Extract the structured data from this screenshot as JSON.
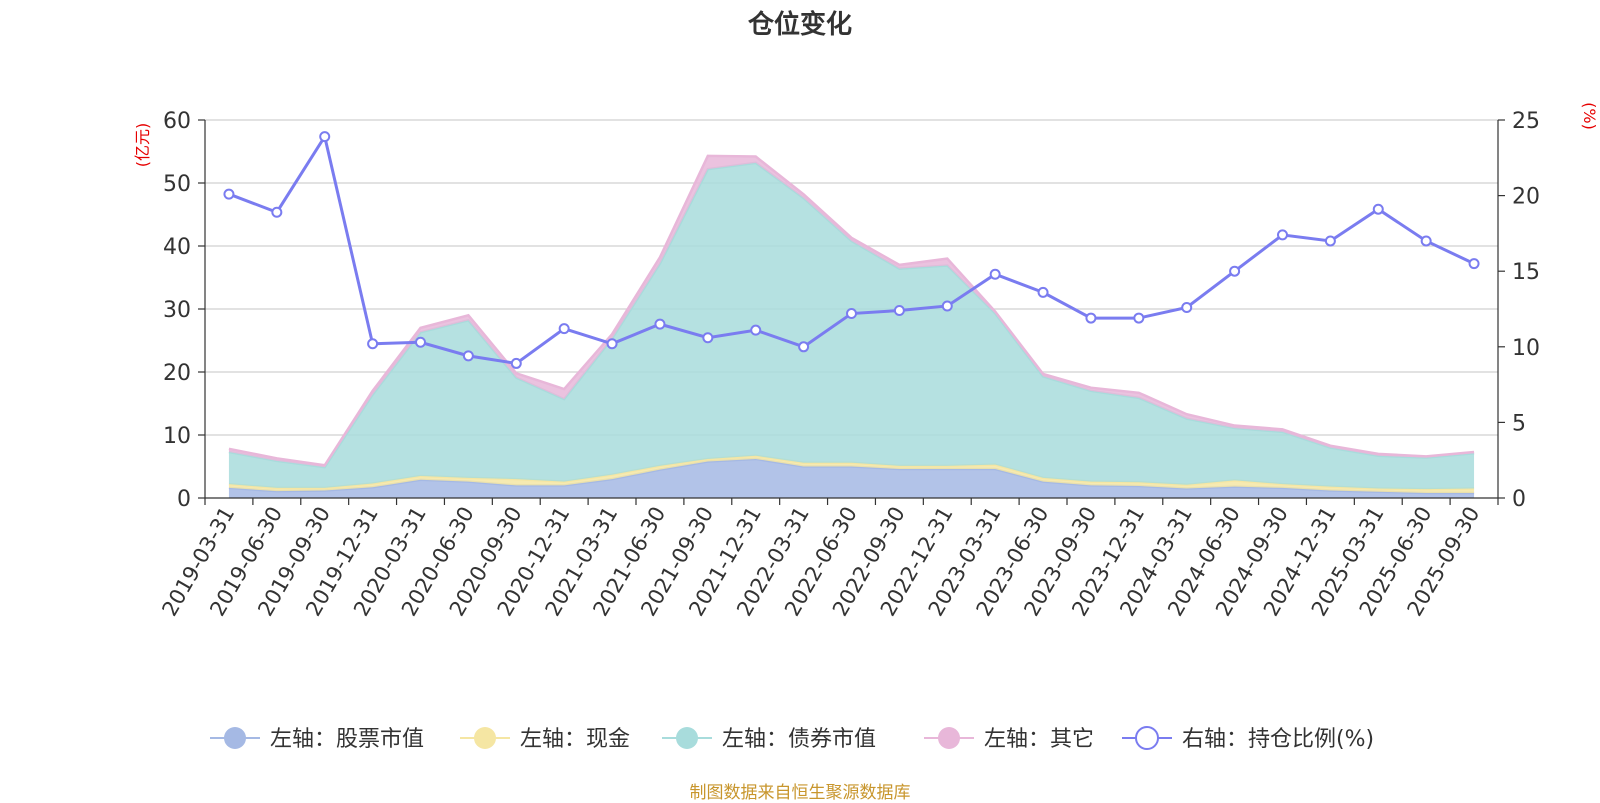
{
  "chart_data": {
    "type": "area",
    "title": "仓位变化",
    "source_note": "制图数据来自恒生聚源数据库",
    "left_axis": {
      "unit_label": "(亿元)",
      "range": [
        0,
        60
      ],
      "ticks": [
        0,
        10,
        20,
        30,
        40,
        50,
        60
      ]
    },
    "right_axis": {
      "unit_label": "(%)",
      "range": [
        0,
        25
      ],
      "ticks": [
        0,
        5,
        10,
        15,
        20,
        25
      ]
    },
    "categories": [
      "2019-03-31",
      "2019-06-30",
      "2019-09-30",
      "2019-12-31",
      "2020-03-31",
      "2020-06-30",
      "2020-09-30",
      "2020-12-31",
      "2021-03-31",
      "2021-06-30",
      "2021-09-30",
      "2021-12-31",
      "2022-03-31",
      "2022-06-30",
      "2022-09-30",
      "2022-12-31",
      "2023-03-31",
      "2023-06-30",
      "2023-09-30",
      "2023-12-31",
      "2024-03-31",
      "2024-06-30",
      "2024-09-30",
      "2024-12-31",
      "2025-03-31",
      "2025-06-30",
      "2025-09-30"
    ],
    "series": [
      {
        "name": "左轴：股票市值",
        "axis": "left",
        "kind": "stacked-area",
        "color": "#a5b9e4",
        "values": [
          1.6,
          1.1,
          1.2,
          1.7,
          2.9,
          2.6,
          2.0,
          2.0,
          3.0,
          4.5,
          5.8,
          6.2,
          5.0,
          5.0,
          4.6,
          4.6,
          4.6,
          2.6,
          2.0,
          1.9,
          1.5,
          1.8,
          1.6,
          1.2,
          1.0,
          0.8,
          0.8
        ]
      },
      {
        "name": "左轴：现金",
        "axis": "left",
        "kind": "stacked-area",
        "color": "#f5e6a3",
        "values": [
          0.6,
          0.5,
          0.4,
          0.6,
          0.6,
          0.6,
          1.0,
          0.6,
          0.7,
          0.6,
          0.4,
          0.5,
          0.6,
          0.6,
          0.5,
          0.5,
          0.7,
          0.6,
          0.6,
          0.6,
          0.6,
          1.0,
          0.6,
          0.6,
          0.5,
          0.6,
          0.7
        ]
      },
      {
        "name": "左轴：债券市值",
        "axis": "left",
        "kind": "stacked-area",
        "color": "#a8dcdc",
        "values": [
          5.1,
          4.3,
          3.3,
          14.1,
          22.8,
          25.0,
          16.1,
          13.1,
          21.6,
          32.1,
          46.0,
          46.5,
          42.0,
          35.2,
          31.3,
          31.8,
          24.0,
          16.1,
          14.4,
          13.4,
          10.5,
          8.3,
          8.3,
          6.2,
          5.2,
          5.0,
          5.6
        ]
      },
      {
        "name": "左轴：其它",
        "axis": "left",
        "kind": "stacked-area",
        "color": "#e8b7d9",
        "values": [
          0.5,
          0.4,
          0.3,
          0.6,
          0.7,
          0.8,
          0.7,
          1.6,
          0.7,
          1.0,
          2.1,
          1.0,
          0.6,
          0.5,
          0.6,
          1.1,
          0.3,
          0.4,
          0.5,
          0.8,
          0.7,
          0.4,
          0.4,
          0.3,
          0.3,
          0.2,
          0.2
        ]
      },
      {
        "name": "右轴：持仓比例(%)",
        "axis": "right",
        "kind": "line",
        "color": "#7a7cf0",
        "values": [
          20.1,
          18.9,
          23.9,
          10.2,
          10.3,
          9.4,
          8.9,
          11.2,
          10.2,
          11.5,
          10.6,
          11.1,
          10.0,
          12.2,
          12.4,
          12.7,
          14.8,
          13.6,
          11.9,
          11.9,
          12.6,
          15.0,
          17.4,
          17.0,
          19.1,
          17.0,
          15.5
        ]
      }
    ],
    "legend_position": "bottom-center",
    "grid": true
  }
}
